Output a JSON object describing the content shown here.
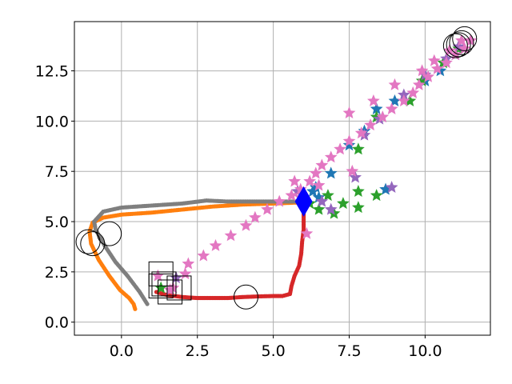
{
  "chart_data": {
    "type": "scatter",
    "title": "",
    "xlabel": "",
    "ylabel": "",
    "xlim": [
      -1.55,
      12.15
    ],
    "ylim": [
      -0.65,
      14.95
    ],
    "grid": true,
    "x_ticks": [
      0.0,
      2.5,
      5.0,
      7.5,
      10.0
    ],
    "x_tick_labels": [
      "0.0",
      "2.5",
      "5.0",
      "7.5",
      "10.0"
    ],
    "y_ticks": [
      0.0,
      2.5,
      5.0,
      7.5,
      10.0,
      12.5
    ],
    "y_tick_labels": [
      "0.0",
      "2.5",
      "5.0",
      "7.5",
      "10.0",
      "12.5"
    ],
    "series": [
      {
        "marker": "dot",
        "color": "#ff7f0e",
        "points": [
          [
            0.45,
            0.65
          ],
          [
            0.4,
            0.9
          ],
          [
            0.25,
            1.2
          ],
          [
            -0.05,
            1.6
          ],
          [
            -0.4,
            2.3
          ],
          [
            -0.75,
            3.1
          ],
          [
            -1.0,
            3.9
          ],
          [
            -1.05,
            4.5
          ],
          [
            -0.95,
            4.95
          ],
          [
            -0.6,
            5.2
          ],
          [
            0.0,
            5.35
          ],
          [
            1.0,
            5.45
          ],
          [
            2.0,
            5.6
          ],
          [
            3.0,
            5.75
          ],
          [
            4.0,
            5.85
          ],
          [
            5.0,
            5.9
          ],
          [
            5.8,
            5.95
          ]
        ]
      },
      {
        "marker": "dot",
        "color": "#d62728",
        "points": [
          [
            1.15,
            1.5
          ],
          [
            1.5,
            1.35
          ],
          [
            2.0,
            1.25
          ],
          [
            2.5,
            1.2
          ],
          [
            3.0,
            1.2
          ],
          [
            3.5,
            1.2
          ],
          [
            4.0,
            1.25
          ],
          [
            4.5,
            1.28
          ],
          [
            5.0,
            1.3
          ],
          [
            5.3,
            1.3
          ],
          [
            5.55,
            1.4
          ],
          [
            5.6,
            1.8
          ],
          [
            5.7,
            2.3
          ],
          [
            5.85,
            2.8
          ],
          [
            5.92,
            3.4
          ],
          [
            5.95,
            4.0
          ],
          [
            6.0,
            4.6
          ],
          [
            6.0,
            5.2
          ],
          [
            6.0,
            5.6
          ],
          [
            6.0,
            5.95
          ]
        ]
      },
      {
        "marker": "dot",
        "color": "#7f7f7f",
        "points": [
          [
            0.85,
            0.9
          ],
          [
            0.6,
            1.5
          ],
          [
            0.2,
            2.3
          ],
          [
            -0.2,
            3.0
          ],
          [
            -0.55,
            3.8
          ],
          [
            -0.85,
            4.6
          ],
          [
            -0.9,
            5.0
          ],
          [
            -0.6,
            5.5
          ],
          [
            0.0,
            5.7
          ],
          [
            1.0,
            5.8
          ],
          [
            2.0,
            5.9
          ],
          [
            2.8,
            6.05
          ],
          [
            3.5,
            6.0
          ],
          [
            4.5,
            6.0
          ],
          [
            5.5,
            6.0
          ],
          [
            5.9,
            6.0
          ]
        ]
      },
      {
        "marker": "star",
        "color": "#1f77b4",
        "points": [
          [
            6.0,
            6.1
          ],
          [
            6.3,
            6.5
          ],
          [
            6.5,
            6.2
          ],
          [
            6.9,
            7.4
          ],
          [
            6.4,
            6.7
          ],
          [
            7.5,
            8.8
          ],
          [
            8.0,
            9.5
          ],
          [
            8.4,
            10.6
          ],
          [
            8.7,
            6.6
          ],
          [
            9.0,
            11.0
          ],
          [
            10.0,
            12.0
          ],
          [
            10.5,
            12.5
          ],
          [
            11.0,
            13.3
          ]
        ]
      },
      {
        "marker": "star",
        "color": "#2ca02c",
        "points": [
          [
            1.3,
            1.7
          ],
          [
            6.2,
            5.9
          ],
          [
            6.5,
            5.6
          ],
          [
            6.8,
            6.3
          ],
          [
            7.0,
            5.4
          ],
          [
            7.3,
            5.9
          ],
          [
            7.8,
            5.7
          ],
          [
            7.8,
            6.5
          ],
          [
            8.4,
            6.3
          ],
          [
            7.8,
            8.6
          ],
          [
            8.4,
            10.2
          ],
          [
            9.5,
            11.0
          ],
          [
            9.9,
            12.0
          ],
          [
            10.6,
            12.9
          ],
          [
            11.1,
            13.6
          ]
        ]
      },
      {
        "marker": "star",
        "color": "#9467bd",
        "points": [
          [
            1.8,
            2.2
          ],
          [
            5.8,
            6.5
          ],
          [
            6.6,
            6.0
          ],
          [
            6.9,
            5.6
          ],
          [
            7.7,
            7.2
          ],
          [
            8.0,
            9.3
          ],
          [
            8.5,
            10.1
          ],
          [
            8.9,
            6.7
          ],
          [
            9.3,
            11.3
          ],
          [
            10.0,
            12.3
          ],
          [
            10.7,
            13.1
          ],
          [
            11.1,
            13.7
          ]
        ]
      },
      {
        "marker": "star",
        "color": "#e377c2",
        "points": [
          [
            1.2,
            2.3
          ],
          [
            1.6,
            1.6
          ],
          [
            1.7,
            1.7
          ],
          [
            2.1,
            2.4
          ],
          [
            2.2,
            2.9
          ],
          [
            2.7,
            3.3
          ],
          [
            3.1,
            3.8
          ],
          [
            3.6,
            4.3
          ],
          [
            4.1,
            4.8
          ],
          [
            4.4,
            5.2
          ],
          [
            4.8,
            5.6
          ],
          [
            5.2,
            6.0
          ],
          [
            5.6,
            6.3
          ],
          [
            5.9,
            6.6
          ],
          [
            6.2,
            7.0
          ],
          [
            6.4,
            7.4
          ],
          [
            6.6,
            7.8
          ],
          [
            6.9,
            8.2
          ],
          [
            7.2,
            8.6
          ],
          [
            7.5,
            9.0
          ],
          [
            7.9,
            9.4
          ],
          [
            8.2,
            9.8
          ],
          [
            8.6,
            10.2
          ],
          [
            8.9,
            10.6
          ],
          [
            9.3,
            11.0
          ],
          [
            9.6,
            11.4
          ],
          [
            9.8,
            11.8
          ],
          [
            10.1,
            12.2
          ],
          [
            10.4,
            12.6
          ],
          [
            10.7,
            12.9
          ],
          [
            11.0,
            13.3
          ],
          [
            11.3,
            13.6
          ],
          [
            11.5,
            14.0
          ],
          [
            6.1,
            4.4
          ],
          [
            7.6,
            7.5
          ],
          [
            7.5,
            10.4
          ],
          [
            8.3,
            11.0
          ],
          [
            9.0,
            11.8
          ],
          [
            9.9,
            12.5
          ],
          [
            10.3,
            13.0
          ],
          [
            10.8,
            13.5
          ],
          [
            11.2,
            14.0
          ],
          [
            5.7,
            7.0
          ],
          [
            6.5,
            6.8
          ],
          [
            5.9,
            6.2
          ]
        ]
      },
      {
        "marker": "diamond",
        "color": "#0000ff",
        "points": [
          [
            6.0,
            6.0
          ]
        ]
      },
      {
        "marker": "square",
        "color": "#000000",
        "points": [
          [
            1.3,
            2.4
          ],
          [
            1.4,
            1.9
          ],
          [
            1.9,
            1.7
          ],
          [
            1.6,
            1.5
          ],
          [
            1.3,
            1.8
          ]
        ]
      },
      {
        "marker": "circle",
        "color": "#000000",
        "points": [
          [
            -1.1,
            4.0
          ],
          [
            -0.95,
            3.9
          ],
          [
            -0.4,
            4.4
          ],
          [
            4.1,
            1.25
          ],
          [
            11.1,
            13.8
          ],
          [
            11.3,
            14.1
          ],
          [
            11.2,
            13.9
          ],
          [
            11.0,
            13.75
          ]
        ]
      }
    ]
  }
}
